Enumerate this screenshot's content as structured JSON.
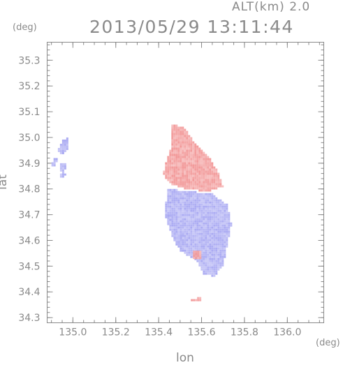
{
  "header": {
    "altitude_label": "ALT(km) 2.0",
    "timestamp": "2013/05/29 13:11:44"
  },
  "axes": {
    "x_label": "lon",
    "y_label": "lat",
    "x_unit": "(deg)",
    "y_unit": "(deg)",
    "x_range": [
      134.88,
      136.17
    ],
    "y_range": [
      34.28,
      35.37
    ],
    "x_ticks": [
      "135.0",
      "135.2",
      "135.4",
      "135.6",
      "135.8",
      "136.0"
    ],
    "y_ticks": [
      "34.3",
      "34.4",
      "34.5",
      "34.6",
      "34.7",
      "34.8",
      "34.9",
      "35.0",
      "35.1",
      "35.2",
      "35.3"
    ]
  },
  "colors": {
    "away": "#f4a6a6",
    "toward": "#b4b4f4",
    "frame": "#8a8a8a"
  },
  "chart_data": {
    "type": "heatmap",
    "variable": "doppler-velocity",
    "regions": [
      {
        "kind": "away",
        "lonlat": [
          [
            135.46,
            35.05
          ],
          [
            135.52,
            35.04
          ],
          [
            135.56,
            34.99
          ],
          [
            135.63,
            34.93
          ],
          [
            135.68,
            34.86
          ],
          [
            135.7,
            34.81
          ],
          [
            135.63,
            34.79
          ],
          [
            135.52,
            34.8
          ],
          [
            135.45,
            34.82
          ],
          [
            135.42,
            34.86
          ],
          [
            135.44,
            34.92
          ],
          [
            135.46,
            34.97
          ]
        ]
      },
      {
        "kind": "toward",
        "lonlat": [
          [
            135.44,
            34.8
          ],
          [
            135.55,
            34.79
          ],
          [
            135.65,
            34.78
          ],
          [
            135.72,
            34.74
          ],
          [
            135.74,
            34.66
          ],
          [
            135.72,
            34.58
          ],
          [
            135.7,
            34.5
          ],
          [
            135.66,
            34.46
          ],
          [
            135.61,
            34.47
          ],
          [
            135.58,
            34.52
          ],
          [
            135.5,
            34.56
          ],
          [
            135.46,
            34.62
          ],
          [
            135.43,
            34.7
          ]
        ]
      },
      {
        "kind": "toward",
        "lonlat": [
          [
            134.95,
            34.99
          ],
          [
            134.98,
            35.0
          ],
          [
            134.98,
            34.96
          ],
          [
            134.95,
            34.93
          ],
          [
            134.93,
            34.95
          ]
        ]
      },
      {
        "kind": "toward",
        "lonlat": [
          [
            134.91,
            34.92
          ],
          [
            134.93,
            34.92
          ],
          [
            134.92,
            34.89
          ],
          [
            134.9,
            34.89
          ]
        ]
      },
      {
        "kind": "toward",
        "lonlat": [
          [
            134.94,
            34.9
          ],
          [
            134.97,
            34.9
          ],
          [
            134.96,
            34.86
          ],
          [
            134.94,
            34.87
          ]
        ]
      },
      {
        "kind": "toward",
        "lonlat": [
          [
            134.94,
            34.86
          ],
          [
            134.97,
            34.86
          ],
          [
            134.96,
            34.84
          ],
          [
            134.94,
            34.84
          ]
        ]
      },
      {
        "kind": "away",
        "lonlat": [
          [
            135.55,
            34.37
          ],
          [
            135.6,
            34.38
          ],
          [
            135.59,
            34.36
          ],
          [
            135.54,
            34.36
          ]
        ]
      },
      {
        "kind": "away",
        "lonlat": [
          [
            135.56,
            34.56
          ],
          [
            135.6,
            34.56
          ],
          [
            135.6,
            34.53
          ],
          [
            135.56,
            34.53
          ]
        ]
      },
      {
        "kind": "toward",
        "lonlat": [
          [
            135.44,
            34.7
          ],
          [
            135.46,
            34.7
          ],
          [
            135.46,
            34.66
          ],
          [
            135.44,
            34.66
          ]
        ]
      },
      {
        "kind": "toward",
        "lonlat": [
          [
            135.47,
            34.63
          ],
          [
            135.52,
            34.63
          ],
          [
            135.5,
            34.58
          ],
          [
            135.47,
            34.6
          ]
        ]
      }
    ]
  }
}
